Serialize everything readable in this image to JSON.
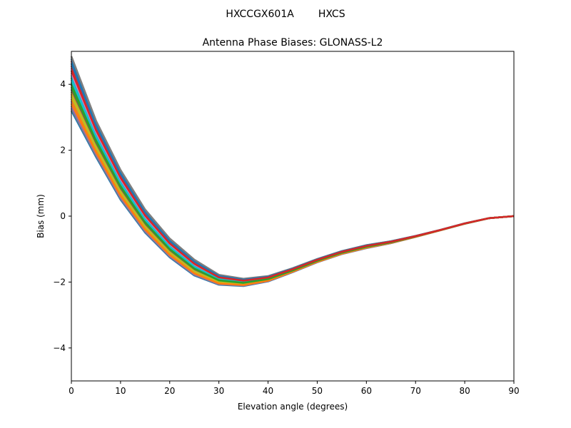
{
  "header": {
    "antenna_type": "HXCCGX601A",
    "radome": "HXCS"
  },
  "chart_data": {
    "type": "line",
    "title": "Antenna Phase Biases: GLONASS-L2",
    "xlabel": "Elevation angle (degrees)",
    "ylabel": "Bias (mm)",
    "xlim": [
      0,
      90
    ],
    "ylim": [
      -5,
      5
    ],
    "xticks": [
      0,
      10,
      20,
      30,
      40,
      50,
      60,
      70,
      80,
      90
    ],
    "yticks": [
      -4,
      -2,
      0,
      2,
      4
    ],
    "grid": false,
    "legend": "none",
    "x": [
      0,
      5,
      10,
      15,
      20,
      25,
      30,
      35,
      40,
      45,
      50,
      55,
      60,
      65,
      70,
      75,
      80,
      85,
      90
    ],
    "envelope_low": [
      3.2,
      1.8,
      0.5,
      -0.5,
      -1.25,
      -1.8,
      -2.08,
      -2.12,
      -1.98,
      -1.7,
      -1.4,
      -1.15,
      -0.97,
      -0.82,
      -0.63,
      -0.43,
      -0.23,
      -0.06,
      0.0
    ],
    "envelope_high": [
      4.85,
      2.9,
      1.4,
      0.2,
      -0.68,
      -1.32,
      -1.78,
      -1.9,
      -1.82,
      -1.58,
      -1.3,
      -1.06,
      -0.88,
      -0.76,
      -0.6,
      -0.42,
      -0.22,
      -0.06,
      0.0
    ],
    "series_count": 24,
    "colors": [
      "#1f77b4",
      "#ff7f0e",
      "#2ca02c",
      "#d62728",
      "#9467bd",
      "#8c564b",
      "#e377c2",
      "#7f7f7f",
      "#bcbd22",
      "#17becf"
    ]
  }
}
